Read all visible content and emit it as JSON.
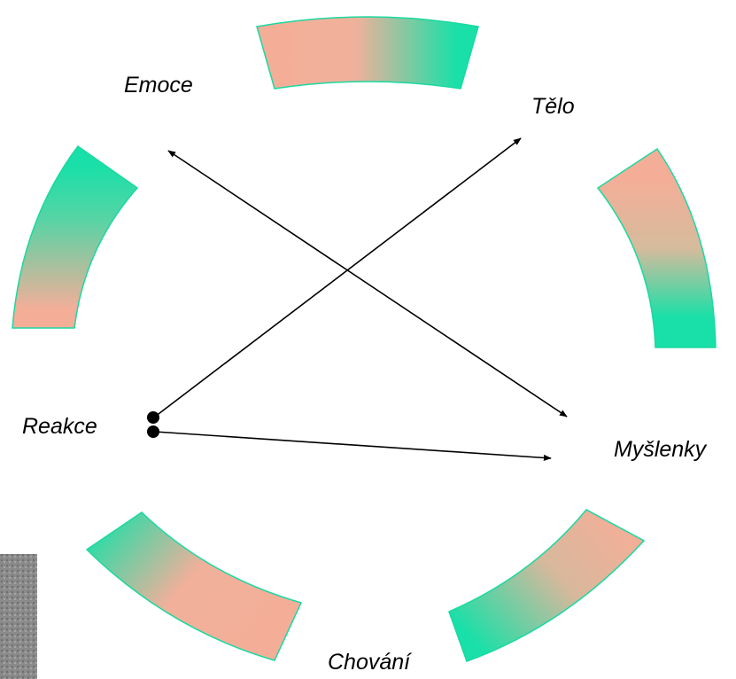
{
  "nodes": [
    {
      "label": "Emoce"
    },
    {
      "label": "Tělo"
    },
    {
      "label": "Reakce"
    },
    {
      "label": "Myšlenky"
    },
    {
      "label": "Chování"
    }
  ]
}
